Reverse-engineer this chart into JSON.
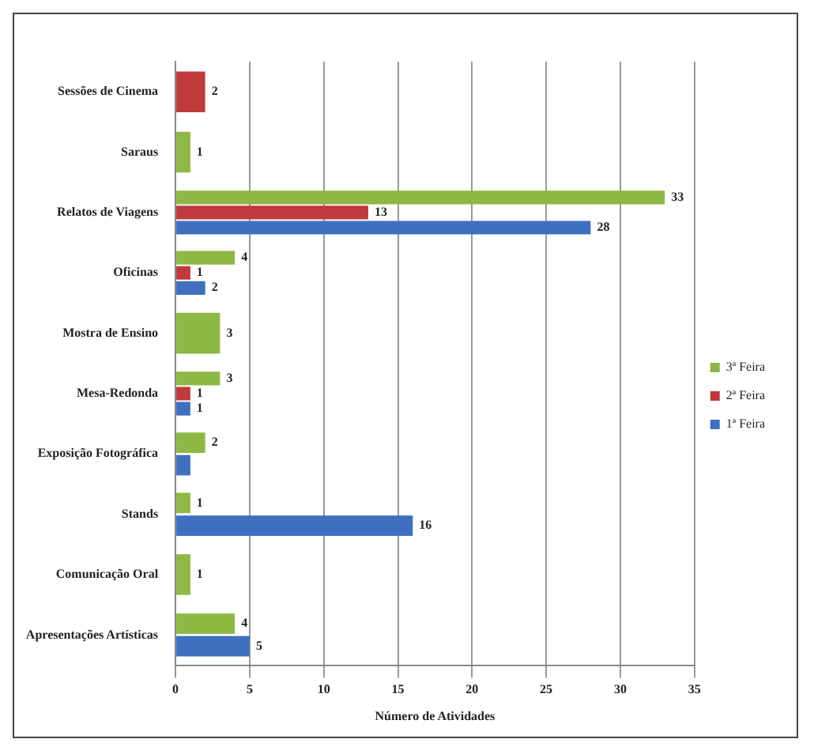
{
  "chart_data": {
    "type": "bar",
    "orientation": "horizontal",
    "xlabel": "Número de Atividades",
    "categories": [
      "Sessões de Cinema",
      "Saraus",
      "Relatos de Viagens",
      "Oficinas",
      "Mostra de Ensino",
      "Mesa-Redonda",
      "Exposição Fotográfica",
      "Stands",
      "Comunicação Oral",
      "Apresentações Artísticas"
    ],
    "series": [
      {
        "name": "3ª Feira",
        "color": "#8db843",
        "values": [
          null,
          1,
          33,
          4,
          3,
          3,
          2,
          1,
          1,
          4
        ],
        "value_labels": [
          null,
          "1",
          "33",
          "4",
          "3",
          "3",
          "2",
          "1",
          "1",
          "4"
        ]
      },
      {
        "name": "2ª Feira",
        "color": "#c0393b",
        "values": [
          2,
          null,
          13,
          1,
          null,
          1,
          null,
          null,
          null,
          null
        ],
        "value_labels": [
          "2",
          null,
          "13",
          "1",
          null,
          "1",
          null,
          null,
          null,
          null
        ]
      },
      {
        "name": "1ª Feira",
        "color": "#3f6fbf",
        "values": [
          null,
          null,
          28,
          2,
          null,
          1,
          1,
          16,
          null,
          5
        ],
        "value_labels": [
          null,
          null,
          "28",
          "2",
          null,
          "1",
          null,
          "16",
          null,
          "5"
        ]
      }
    ],
    "xlim": [
      0,
      35
    ],
    "xticks": [
      0,
      5,
      10,
      15,
      20,
      25,
      30,
      35
    ],
    "grid": "x",
    "legend": "right"
  }
}
